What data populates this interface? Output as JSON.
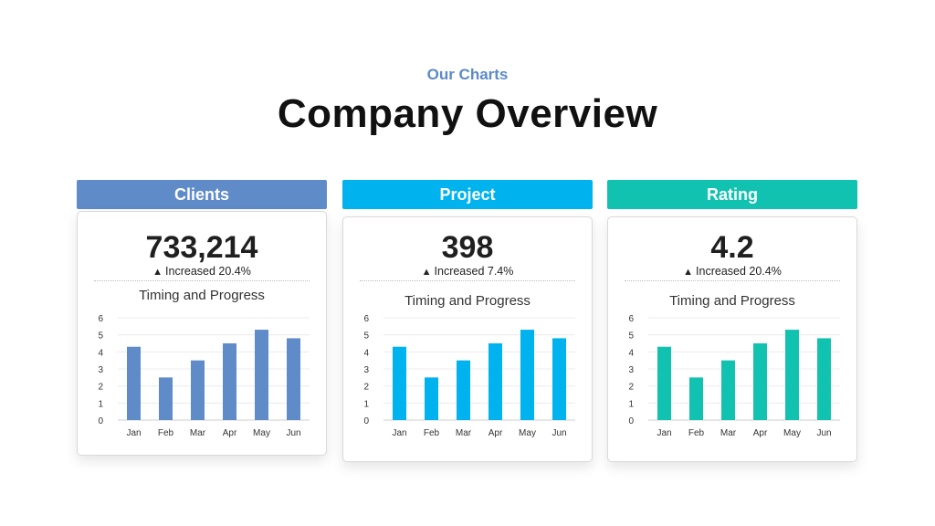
{
  "header": {
    "eyebrow": "Our Charts",
    "title": "Company Overview"
  },
  "panels": [
    {
      "label": "Clients",
      "color": "#5f8bc9",
      "metric": "733,214",
      "delta": "Increased 20.4%",
      "chart_title": "Timing and Progress"
    },
    {
      "label": "Project",
      "color": "#00b2ee",
      "metric": "398",
      "delta": "Increased 7.4%",
      "chart_title": "Timing and Progress"
    },
    {
      "label": "Rating",
      "color": "#12c2b0",
      "metric": "4.2",
      "delta": "Increased 20.4%",
      "chart_title": "Timing and Progress"
    }
  ],
  "chart_data": [
    {
      "type": "bar",
      "title": "Timing and Progress",
      "categories": [
        "Jan",
        "Feb",
        "Mar",
        "Apr",
        "May",
        "Jun"
      ],
      "values": [
        4.3,
        2.5,
        3.5,
        4.5,
        5.3,
        4.8
      ],
      "ylim": [
        0,
        6
      ],
      "yticks": [
        0,
        1,
        2,
        3,
        4,
        5,
        6
      ],
      "grid": true,
      "color": "#5f8bc9"
    },
    {
      "type": "bar",
      "title": "Timing and Progress",
      "categories": [
        "Jan",
        "Feb",
        "Mar",
        "Apr",
        "May",
        "Jun"
      ],
      "values": [
        4.3,
        2.5,
        3.5,
        4.5,
        5.3,
        4.8
      ],
      "ylim": [
        0,
        6
      ],
      "yticks": [
        0,
        1,
        2,
        3,
        4,
        5,
        6
      ],
      "grid": true,
      "color": "#00b2ee"
    },
    {
      "type": "bar",
      "title": "Timing and Progress",
      "categories": [
        "Jan",
        "Feb",
        "Mar",
        "Apr",
        "May",
        "Jun"
      ],
      "values": [
        4.3,
        2.5,
        3.5,
        4.5,
        5.3,
        4.8
      ],
      "ylim": [
        0,
        6
      ],
      "yticks": [
        0,
        1,
        2,
        3,
        4,
        5,
        6
      ],
      "grid": true,
      "color": "#12c2b0"
    }
  ]
}
